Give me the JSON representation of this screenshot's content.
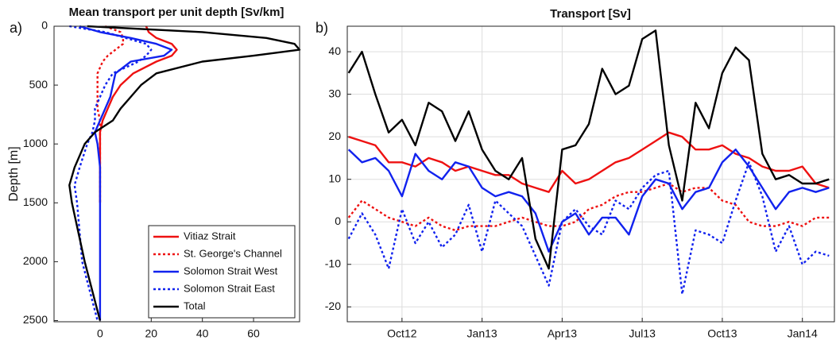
{
  "chart_data": [
    {
      "type": "profile",
      "panel_label": "a)",
      "title": "Mean transport per unit depth [Sv/km]",
      "ylabel": "Depth [m]",
      "y": [
        0,
        50,
        100,
        150,
        200,
        250,
        300,
        400,
        500,
        600,
        700,
        800,
        900,
        1000,
        1200,
        1350,
        1500,
        2000,
        2500
      ],
      "y_reverse": true,
      "xlim": [
        -18,
        78
      ],
      "ylim": [
        0,
        2510
      ],
      "xticks": [
        0,
        20,
        40,
        60
      ],
      "yticks": [
        0,
        500,
        1000,
        1500,
        2000,
        2500
      ],
      "grid": false,
      "legend": "lower right",
      "series": [
        {
          "name": "Vitiaz Strait",
          "color": "#ee1111",
          "dash": false,
          "values": [
            18,
            19,
            22,
            28,
            30,
            28,
            22,
            13,
            8,
            5,
            3,
            1,
            0,
            0,
            0,
            0,
            0,
            null,
            null
          ]
        },
        {
          "name": "St. George's Channel",
          "color": "#ee1111",
          "dash": true,
          "values": [
            2,
            8,
            9,
            9,
            6,
            3,
            1,
            -1,
            -1,
            -1,
            -1,
            0,
            0,
            0,
            0,
            0,
            0,
            null,
            null
          ]
        },
        {
          "name": "Solomon Strait West",
          "color": "#1122ee",
          "dash": false,
          "values": [
            -8,
            0,
            12,
            22,
            28,
            25,
            12,
            6,
            5,
            4,
            2,
            0,
            -2,
            -1,
            0,
            0,
            0,
            0,
            0
          ]
        },
        {
          "name": "Solomon Strait East",
          "color": "#1122ee",
          "dash": true,
          "values": [
            -12,
            2,
            10,
            18,
            20,
            18,
            15,
            5,
            2,
            0,
            -2,
            -2,
            -3,
            -5,
            -8,
            -10,
            -9,
            -7,
            -1
          ]
        },
        {
          "name": "Total",
          "color": "#000000",
          "dash": false,
          "values": [
            -5,
            40,
            65,
            76,
            78,
            60,
            40,
            22,
            16,
            12,
            8,
            5,
            -2,
            -6,
            -10,
            -12,
            -11,
            -6,
            0
          ]
        }
      ]
    },
    {
      "type": "line",
      "panel_label": "b)",
      "title": "Transport [Sv]",
      "x": [
        7,
        7.5,
        8,
        8.5,
        9,
        9.5,
        10,
        10.5,
        11,
        11.5,
        12,
        12.5,
        13,
        13.5,
        14,
        14.5,
        15,
        15.5,
        16,
        16.5,
        17,
        17.5,
        18,
        18.5,
        19,
        19.5,
        20,
        20.5,
        21,
        21.5,
        22,
        22.5,
        23,
        23.5,
        24,
        24.5,
        25
      ],
      "xlim": [
        6.95,
        25.2
      ],
      "ylim": [
        -23.5,
        46
      ],
      "xticks": [
        {
          "value": 9,
          "label": "Oct12"
        },
        {
          "value": 12,
          "label": "Jan13"
        },
        {
          "value": 15,
          "label": "Apr13"
        },
        {
          "value": 18,
          "label": "Jul13"
        },
        {
          "value": 21,
          "label": "Oct13"
        },
        {
          "value": 24,
          "label": "Jan14"
        }
      ],
      "yticks": [
        -20,
        -10,
        0,
        10,
        20,
        30,
        40
      ],
      "grid": true,
      "series": [
        {
          "name": "Vitiaz Strait",
          "color": "#ee1111",
          "dash": false,
          "values": [
            20,
            19,
            18,
            14,
            14,
            13,
            15,
            14,
            12,
            13,
            12,
            11,
            11,
            9,
            8,
            7,
            12,
            9,
            10,
            12,
            14,
            15,
            17,
            19,
            21,
            20,
            17,
            17,
            18,
            16,
            15,
            13,
            12,
            12,
            13,
            9,
            8
          ]
        },
        {
          "name": "St. George's Channel",
          "color": "#ee1111",
          "dash": true,
          "values": [
            1,
            5,
            3,
            1,
            0,
            -1,
            1,
            -1,
            -2,
            -1,
            -1,
            -1,
            0,
            1,
            0,
            -1,
            -1,
            0,
            3,
            4,
            6,
            7,
            7,
            8,
            9,
            7,
            8,
            8,
            5,
            4,
            0,
            -1,
            -1,
            0,
            -1,
            1,
            1
          ]
        },
        {
          "name": "Solomon Strait West",
          "color": "#1122ee",
          "dash": false,
          "values": [
            17,
            14,
            15,
            12,
            6,
            16,
            12,
            10,
            14,
            13,
            8,
            6,
            7,
            6,
            2,
            -7,
            0,
            2,
            -3,
            1,
            1,
            -3,
            6,
            10,
            9,
            3,
            7,
            8,
            14,
            17,
            13,
            8,
            3,
            7,
            8,
            7,
            8
          ]
        },
        {
          "name": "Solomon Strait East",
          "color": "#1122ee",
          "dash": true,
          "values": [
            -4,
            2,
            -3,
            -11,
            3,
            -5,
            0,
            -6,
            -3,
            4,
            -7,
            5,
            2,
            -1,
            -8,
            -15,
            0,
            3,
            -1,
            -3,
            5,
            3,
            8,
            11,
            12,
            -17,
            -2,
            -3,
            -5,
            5,
            14,
            6,
            -7,
            -1,
            -10,
            -7,
            -8
          ]
        },
        {
          "name": "Total",
          "color": "#000000",
          "dash": false,
          "values": [
            35,
            40,
            30,
            21,
            24,
            18,
            28,
            26,
            19,
            26,
            17,
            12,
            10,
            15,
            -4,
            -11,
            17,
            18,
            23,
            36,
            30,
            32,
            43,
            45,
            18,
            5,
            28,
            22,
            35,
            41,
            38,
            16,
            10,
            11,
            9,
            9,
            10
          ]
        }
      ]
    }
  ]
}
